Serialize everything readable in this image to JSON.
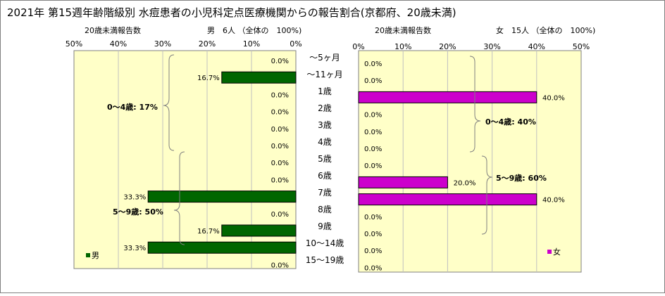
{
  "title": "2021年 第15週年齢階級別 水痘患者の小児科定点医療機関からの報告割合(京都府、20歳未満)",
  "colors": {
    "panel_bg": "#ffffc8",
    "male_bar": "#006600",
    "female_bar": "#cc00cc",
    "border": "#808080",
    "gridline": "#c0c0c0"
  },
  "age_groups": [
    "～5ヶ月",
    "～11ヶ月",
    "1歳",
    "2歳",
    "3歳",
    "4歳",
    "5歳",
    "6歳",
    "7歳",
    "8歳",
    "9歳",
    "10～14歳",
    "15～19歳"
  ],
  "chart_data": [
    {
      "type": "bar",
      "orientation": "horizontal-reversed",
      "header_left": "20歳未満報告数",
      "header_right": "男　6人 （全体の　100%)",
      "xlim": [
        0,
        50
      ],
      "ticks": [
        "50%",
        "40%",
        "30%",
        "20%",
        "10%",
        "0%"
      ],
      "categories": [
        "～5ヶ月",
        "～11ヶ月",
        "1歳",
        "2歳",
        "3歳",
        "4歳",
        "5歳",
        "6歳",
        "7歳",
        "8歳",
        "9歳",
        "10～14歳",
        "15～19歳"
      ],
      "series": [
        {
          "name": "男",
          "values": [
            0.0,
            16.7,
            0.0,
            0.0,
            0.0,
            0.0,
            0.0,
            0.0,
            33.3,
            0.0,
            16.7,
            33.3,
            0.0
          ]
        }
      ],
      "value_labels": [
        "0.0%",
        "16.7%",
        "0.0%",
        "0.0%",
        "0.0%",
        "0.0%",
        "0.0%",
        "0.0%",
        "33.3%",
        "0.0%",
        "16.7%",
        "33.3%",
        "0.0%"
      ],
      "annotations": [
        "0～4歳: 17%",
        "5～9歳: 50%"
      ],
      "legend": "bottom-left"
    },
    {
      "type": "bar",
      "orientation": "horizontal",
      "header_left": "20歳未満報告数",
      "header_right": "女　15人 （全体の　100%)",
      "xlim": [
        0,
        50
      ],
      "ticks": [
        "0%",
        "10%",
        "20%",
        "30%",
        "40%",
        "50%"
      ],
      "categories": [
        "～5ヶ月",
        "～11ヶ月",
        "1歳",
        "2歳",
        "3歳",
        "4歳",
        "5歳",
        "6歳",
        "7歳",
        "8歳",
        "9歳",
        "10～14歳",
        "15～19歳"
      ],
      "series": [
        {
          "name": "女",
          "values": [
            0.0,
            0.0,
            40.0,
            0.0,
            0.0,
            0.0,
            0.0,
            20.0,
            40.0,
            0.0,
            0.0,
            0.0,
            0.0
          ]
        }
      ],
      "value_labels": [
        "0.0%",
        "0.0%",
        "40.0%",
        "0.0%",
        "0.0%",
        "0.0%",
        "0.0%",
        "20.0%",
        "40.0%",
        "0.0%",
        "0.0%",
        "0.0%",
        "0.0%"
      ],
      "annotations": [
        "0～4歳: 40%",
        "5～9歳: 60%"
      ],
      "legend": "bottom-right"
    }
  ]
}
